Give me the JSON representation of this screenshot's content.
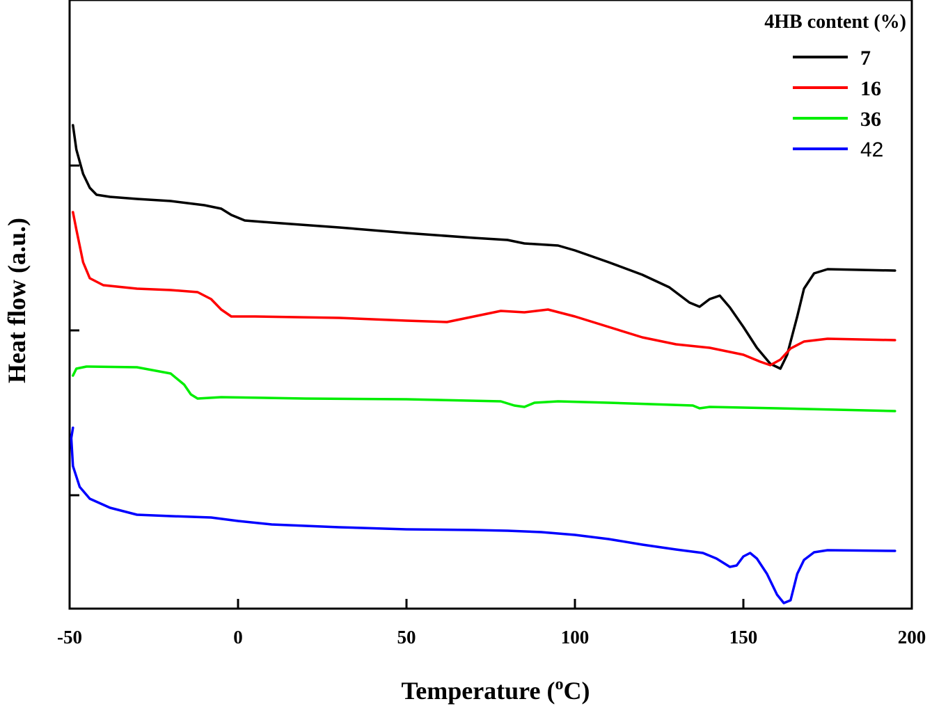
{
  "chart_data": {
    "type": "line",
    "title": "",
    "xlabel": "Temperature (",
    "xlabel_sup": "o",
    "xlabel_end": "C)",
    "ylabel": "Heat flow (a.u.)",
    "xlim": [
      -50,
      200
    ],
    "x_ticks": [
      -50,
      0,
      50,
      100,
      150,
      200
    ],
    "x_tick_labels": [
      "-50",
      "0",
      "50",
      "100",
      "150",
      "200"
    ],
    "y_scale": "arbitrary units, curves vertically offset",
    "grid": false,
    "legend": {
      "title": "4HB content (%)",
      "placement": "top-right"
    },
    "series": [
      {
        "name": "7",
        "color": "#000000",
        "points": [
          [
            -49,
            2.95
          ],
          [
            -48,
            2.6
          ],
          [
            -46,
            2.25
          ],
          [
            -44,
            2.05
          ],
          [
            -42,
            1.95
          ],
          [
            -38,
            1.92
          ],
          [
            -30,
            1.89
          ],
          [
            -20,
            1.86
          ],
          [
            -10,
            1.8
          ],
          [
            -5,
            1.75
          ],
          [
            -2,
            1.66
          ],
          [
            2,
            1.58
          ],
          [
            10,
            1.55
          ],
          [
            30,
            1.48
          ],
          [
            50,
            1.4
          ],
          [
            70,
            1.33
          ],
          [
            80,
            1.3
          ],
          [
            85,
            1.25
          ],
          [
            95,
            1.22
          ],
          [
            100,
            1.15
          ],
          [
            110,
            0.98
          ],
          [
            120,
            0.8
          ],
          [
            128,
            0.62
          ],
          [
            134,
            0.4
          ],
          [
            137,
            0.34
          ],
          [
            140,
            0.45
          ],
          [
            143,
            0.5
          ],
          [
            146,
            0.33
          ],
          [
            150,
            0.05
          ],
          [
            154,
            -0.25
          ],
          [
            158,
            -0.48
          ],
          [
            161,
            -0.55
          ],
          [
            163,
            -0.35
          ],
          [
            166,
            0.2
          ],
          [
            168,
            0.6
          ],
          [
            171,
            0.82
          ],
          [
            175,
            0.88
          ],
          [
            195,
            0.86
          ]
        ]
      },
      {
        "name": "16",
        "color": "#ff0000",
        "points": [
          [
            -49,
            1.7
          ],
          [
            -48,
            1.45
          ],
          [
            -46,
            0.98
          ],
          [
            -44,
            0.75
          ],
          [
            -40,
            0.65
          ],
          [
            -30,
            0.6
          ],
          [
            -20,
            0.58
          ],
          [
            -12,
            0.55
          ],
          [
            -8,
            0.45
          ],
          [
            -5,
            0.3
          ],
          [
            -2,
            0.2
          ],
          [
            5,
            0.2
          ],
          [
            30,
            0.18
          ],
          [
            50,
            0.14
          ],
          [
            62,
            0.12
          ],
          [
            70,
            0.2
          ],
          [
            78,
            0.28
          ],
          [
            85,
            0.26
          ],
          [
            92,
            0.3
          ],
          [
            100,
            0.2
          ],
          [
            110,
            0.05
          ],
          [
            120,
            -0.1
          ],
          [
            130,
            -0.2
          ],
          [
            140,
            -0.25
          ],
          [
            150,
            -0.35
          ],
          [
            155,
            -0.45
          ],
          [
            158,
            -0.5
          ],
          [
            161,
            -0.42
          ],
          [
            164,
            -0.26
          ],
          [
            168,
            -0.16
          ],
          [
            175,
            -0.12
          ],
          [
            195,
            -0.14
          ]
        ]
      },
      {
        "name": "36",
        "color": "#00ee00",
        "points": [
          [
            -49,
            -0.65
          ],
          [
            -48,
            -0.55
          ],
          [
            -45,
            -0.52
          ],
          [
            -30,
            -0.53
          ],
          [
            -20,
            -0.62
          ],
          [
            -16,
            -0.78
          ],
          [
            -14,
            -0.92
          ],
          [
            -12,
            -0.98
          ],
          [
            -5,
            -0.96
          ],
          [
            20,
            -0.98
          ],
          [
            50,
            -0.99
          ],
          [
            78,
            -1.02
          ],
          [
            82,
            -1.08
          ],
          [
            85,
            -1.1
          ],
          [
            88,
            -1.04
          ],
          [
            95,
            -1.02
          ],
          [
            110,
            -1.04
          ],
          [
            135,
            -1.08
          ],
          [
            137,
            -1.12
          ],
          [
            140,
            -1.1
          ],
          [
            160,
            -1.12
          ],
          [
            195,
            -1.16
          ]
        ]
      },
      {
        "name": "42",
        "color": "#0000ff",
        "points": [
          [
            -49,
            -1.4
          ],
          [
            -49.5,
            -1.55
          ],
          [
            -49,
            -1.95
          ],
          [
            -47,
            -2.25
          ],
          [
            -44,
            -2.42
          ],
          [
            -38,
            -2.55
          ],
          [
            -30,
            -2.65
          ],
          [
            -20,
            -2.67
          ],
          [
            -8,
            -2.69
          ],
          [
            0,
            -2.74
          ],
          [
            10,
            -2.79
          ],
          [
            30,
            -2.83
          ],
          [
            50,
            -2.86
          ],
          [
            70,
            -2.87
          ],
          [
            80,
            -2.88
          ],
          [
            90,
            -2.9
          ],
          [
            100,
            -2.94
          ],
          [
            110,
            -3.0
          ],
          [
            120,
            -3.08
          ],
          [
            130,
            -3.15
          ],
          [
            138,
            -3.2
          ],
          [
            142,
            -3.28
          ],
          [
            146,
            -3.4
          ],
          [
            148,
            -3.38
          ],
          [
            150,
            -3.25
          ],
          [
            152,
            -3.2
          ],
          [
            154,
            -3.28
          ],
          [
            157,
            -3.5
          ],
          [
            160,
            -3.8
          ],
          [
            162,
            -3.92
          ],
          [
            164,
            -3.88
          ],
          [
            166,
            -3.5
          ],
          [
            168,
            -3.3
          ],
          [
            171,
            -3.19
          ],
          [
            175,
            -3.16
          ],
          [
            195,
            -3.17
          ]
        ]
      }
    ]
  }
}
